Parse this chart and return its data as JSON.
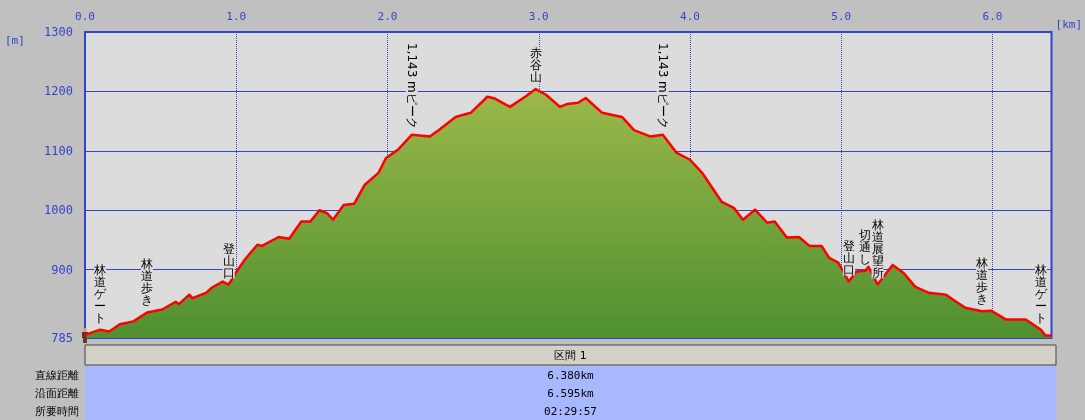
{
  "chart_data": {
    "type": "area",
    "xlabel": "[km]",
    "ylabel": "[m]",
    "x": [
      0.01,
      0.1,
      0.16,
      0.23,
      0.32,
      0.41,
      0.51,
      0.6,
      0.62,
      0.69,
      0.71,
      0.8,
      0.84,
      0.91,
      0.95,
      1.01,
      1.06,
      1.14,
      1.17,
      1.28,
      1.35,
      1.43,
      1.49,
      1.55,
      1.6,
      1.64,
      1.71,
      1.78,
      1.85,
      1.94,
      1.99,
      2.07,
      2.16,
      2.28,
      2.34,
      2.45,
      2.55,
      2.66,
      2.71,
      2.81,
      2.91,
      2.98,
      3.05,
      3.14,
      3.19,
      3.26,
      3.31,
      3.42,
      3.55,
      3.63,
      3.74,
      3.82,
      3.91,
      4.0,
      4.08,
      4.21,
      4.29,
      4.35,
      4.43,
      4.51,
      4.56,
      4.64,
      4.72,
      4.79,
      4.87,
      4.92,
      4.98,
      5.05,
      5.1,
      5.16,
      5.18,
      5.24,
      5.34,
      5.41,
      5.49,
      5.58,
      5.69,
      5.76,
      5.82,
      5.93,
      5.99,
      6.09,
      6.22,
      6.32,
      6.35,
      6.39
    ],
    "series": [
      {
        "color": "#ff0000",
        "values": [
          791,
          799,
          796,
          808,
          813,
          828,
          833,
          846,
          842,
          858,
          852,
          861,
          870,
          880,
          875,
          900,
          918,
          942,
          940,
          955,
          952,
          981,
          981,
          1000,
          995,
          984,
          1009,
          1011,
          1043,
          1063,
          1088,
          1102,
          1127,
          1124,
          1135,
          1157,
          1164,
          1191,
          1188,
          1174,
          1191,
          1204,
          1194,
          1174,
          1179,
          1181,
          1189,
          1164,
          1157,
          1135,
          1124,
          1127,
          1097,
          1085,
          1063,
          1014,
          1004,
          984,
          1001,
          979,
          981,
          954,
          955,
          940,
          940,
          920,
          912,
          880,
          897,
          898,
          905,
          875,
          908,
          895,
          871,
          861,
          858,
          846,
          836,
          830,
          831,
          816,
          816,
          799,
          789,
          789
        ]
      }
    ],
    "xlim": [
      0,
      6.39
    ],
    "xticks": [
      {
        "value": 0,
        "label": "0.0"
      },
      {
        "value": 1,
        "label": "1.0"
      },
      {
        "value": 2,
        "label": "2.0"
      },
      {
        "value": 3,
        "label": "3.0"
      },
      {
        "value": 4,
        "label": "4.0"
      },
      {
        "value": 5,
        "label": "5.0"
      },
      {
        "value": 6,
        "label": "6.0"
      }
    ],
    "ylim": [
      785,
      1300
    ],
    "yticks": [
      785,
      900,
      1000,
      1100,
      1200,
      1300
    ],
    "grid": true,
    "marker": "none",
    "line_style": "solid",
    "annotations": [
      {
        "text": "林道ゲート",
        "x": 0.1,
        "y": 799
      },
      {
        "text": "林道歩き",
        "x": 0.41,
        "y": 828
      },
      {
        "text": "登山口",
        "x": 0.95,
        "y": 875
      },
      {
        "text": "1,143 mピーク",
        "x": 2.16,
        "y": 1127
      },
      {
        "text": "赤谷山",
        "x": 2.98,
        "y": 1204
      },
      {
        "text": "1,143 mピーク",
        "x": 3.82,
        "y": 1127
      },
      {
        "text": "登山口",
        "x": 5.05,
        "y": 880
      },
      {
        "text": "切通し",
        "x": 5.16,
        "y": 898
      },
      {
        "text": "林道展望所",
        "x": 5.24,
        "y": 875
      },
      {
        "text": "林道歩き",
        "x": 5.93,
        "y": 830
      },
      {
        "text": "林道ゲート",
        "x": 6.32,
        "y": 799
      },
      "区間 1",
      "直線距離 6.380km",
      "沿面距離 6.595km",
      "所要時間 02:29:57"
    ]
  }
}
